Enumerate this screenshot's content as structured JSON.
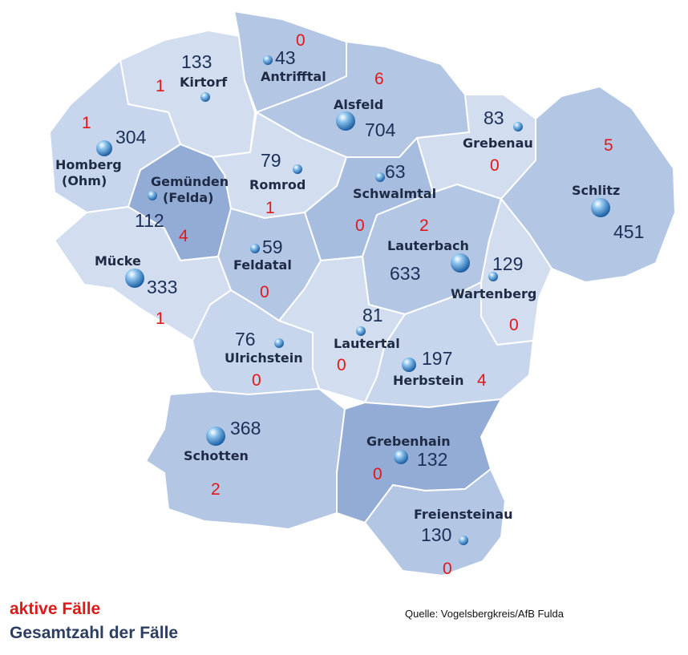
{
  "colors": {
    "active": "#e01818",
    "total": "#1c2f57",
    "region_light": "#cfdcee",
    "region_medium": "#b3c6e4",
    "region_dark": "#93acd6",
    "border": "#ffffff",
    "marker": "#3b8fd4"
  },
  "legend": {
    "active_label": "aktive Fälle",
    "total_label": "Gesamtzahl der Fälle"
  },
  "source": "Quelle: Vogelsbergkreis/AfB Fulda",
  "municipalities": [
    {
      "name": "Antrifftal",
      "total": "43",
      "active": "0"
    },
    {
      "name": "Kirtorf",
      "total": "133",
      "active": "1"
    },
    {
      "name": "Alsfeld",
      "total": "704",
      "active": "6"
    },
    {
      "name": "Homberg (Ohm)",
      "total": "304",
      "active": "1"
    },
    {
      "name": "Gemünden (Felda)",
      "total": "112",
      "active": "4"
    },
    {
      "name": "Romrod",
      "total": "79",
      "active": "1"
    },
    {
      "name": "Schwalmtal",
      "total": "63",
      "active": "0"
    },
    {
      "name": "Grebenau",
      "total": "83",
      "active": "0"
    },
    {
      "name": "Schlitz",
      "total": "451",
      "active": "5"
    },
    {
      "name": "Lauterbach",
      "total": "633",
      "active": "2"
    },
    {
      "name": "Feldatal",
      "total": "59",
      "active": "0"
    },
    {
      "name": "Mücke",
      "total": "333",
      "active": "1"
    },
    {
      "name": "Wartenberg",
      "total": "129",
      "active": "0"
    },
    {
      "name": "Ulrichstein",
      "total": "76",
      "active": "0"
    },
    {
      "name": "Lautertal",
      "total": "81",
      "active": "0"
    },
    {
      "name": "Herbstein",
      "total": "197",
      "active": "4"
    },
    {
      "name": "Schotten",
      "total": "368",
      "active": "2"
    },
    {
      "name": "Grebenhain",
      "total": "132",
      "active": "0"
    },
    {
      "name": "Freiensteinau",
      "total": "130",
      "active": "0"
    }
  ]
}
